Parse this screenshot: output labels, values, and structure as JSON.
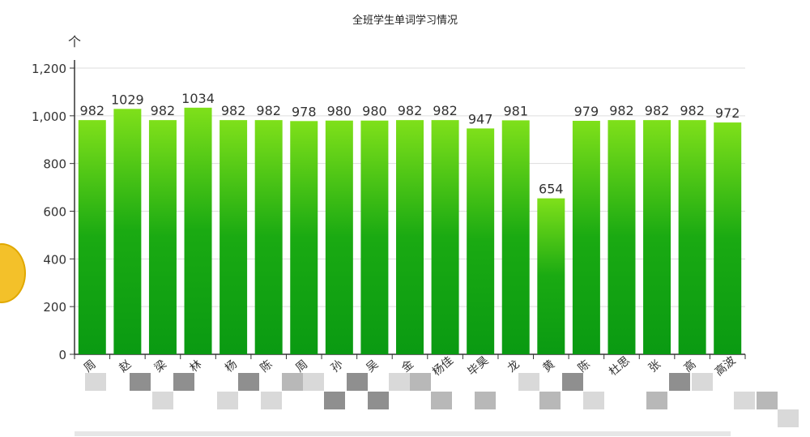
{
  "chart_data": {
    "type": "bar",
    "title": "全班学生单词学习情况",
    "y_unit": "个",
    "ylim": [
      0,
      1200
    ],
    "yticks": [
      "0",
      "200",
      "400",
      "600",
      "800",
      "1,000",
      "1,200"
    ],
    "grid": true,
    "categories": [
      "周",
      "赵",
      "梁",
      "林",
      "杨",
      "陈",
      "周",
      "孙",
      "吴",
      "金",
      "杨佳",
      "毕昊",
      "龙",
      "黄",
      "陈",
      "杜思",
      "张",
      "高",
      "高波"
    ],
    "values": [
      982,
      1029,
      982,
      1034,
      982,
      982,
      978,
      980,
      980,
      982,
      982,
      947,
      981,
      654,
      979,
      982,
      982,
      982,
      972
    ],
    "colors": {
      "bar_top": "#7fe01a",
      "bar_bottom": "#0a9a12",
      "axis": "#333333",
      "grid": "#dddddd"
    }
  }
}
